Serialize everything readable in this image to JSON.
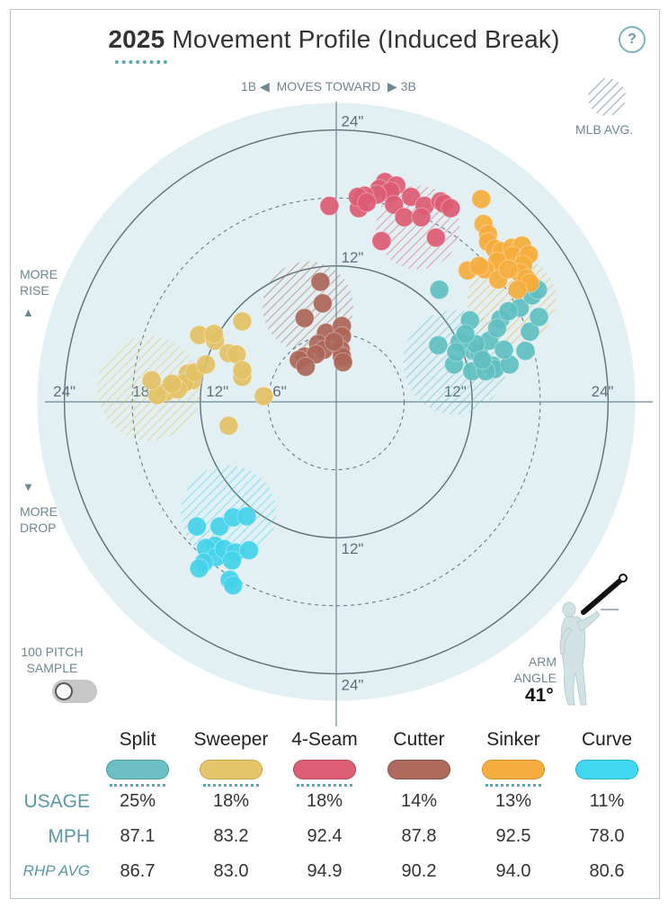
{
  "title": {
    "year": "2025",
    "rest": "Movement Profile (Induced Break)"
  },
  "help_icon": "?",
  "direction": {
    "left": "1B",
    "middle": "MOVES TOWARD",
    "right": "3B"
  },
  "legend": {
    "mlb_avg": "MLB AVG."
  },
  "vertical_labels": {
    "rise_1": "MORE",
    "rise_2": "RISE",
    "drop_1": "MORE",
    "drop_2": "DROP"
  },
  "sample_toggle": {
    "line1": "100 PITCH",
    "line2": "SAMPLE",
    "on": false
  },
  "arm_angle": {
    "line1": "ARM",
    "line2": "ANGLE",
    "value": "41°"
  },
  "row_labels": {
    "usage": "USAGE",
    "mph": "MPH",
    "rhp": "RHP AVG"
  },
  "colors": {
    "background_disc": "#e2eff3",
    "ring": "#5d7179",
    "grid": "#6e8a94"
  },
  "chart_data": {
    "type": "scatter",
    "units": "inches",
    "axis_range": [
      -27,
      27
    ],
    "rings": [
      6,
      12,
      18,
      24
    ],
    "ring_labels": [
      {
        "text": "24\"",
        "x": 0,
        "y": 24
      },
      {
        "text": "12\"",
        "x": 0,
        "y": 12
      },
      {
        "text": "12\"",
        "x": 0,
        "y": -12
      },
      {
        "text": "24\"",
        "x": 0,
        "y": -24
      },
      {
        "text": "24\"",
        "x": -24,
        "y": 0
      },
      {
        "text": "18\"",
        "x": -17,
        "y": 0
      },
      {
        "text": "12\"",
        "x": -10.5,
        "y": 0
      },
      {
        "text": "6\"",
        "x": -5,
        "y": 0
      },
      {
        "text": "12\"",
        "x": 10.5,
        "y": 0
      },
      {
        "text": "24\"",
        "x": 23.5,
        "y": 0
      }
    ],
    "mlb_avg": [
      {
        "pitch": "Split",
        "x": 10.5,
        "y": 3.5,
        "r": 4.6
      },
      {
        "pitch": "Sweeper",
        "x": -16.5,
        "y": 1.2,
        "r": 4.6
      },
      {
        "pitch": "4-Seam",
        "x": 7.2,
        "y": 15.4,
        "r": 3.7
      },
      {
        "pitch": "Cutter",
        "x": -2.5,
        "y": 8.4,
        "r": 4.0
      },
      {
        "pitch": "Sinker",
        "x": 15.5,
        "y": 9.0,
        "r": 3.9
      },
      {
        "pitch": "Curve",
        "x": -9.5,
        "y": -9.8,
        "r": 4.2
      }
    ],
    "series": [
      {
        "name": "Split",
        "color": "#5fbfc0",
        "points": [
          [
            9.1,
            9.9
          ],
          [
            11.8,
            7.2
          ],
          [
            12.1,
            4.5
          ],
          [
            12.6,
            4.3
          ],
          [
            13.5,
            5.4
          ],
          [
            12.3,
            5.1
          ],
          [
            9.0,
            5.0
          ],
          [
            10.9,
            5.3
          ],
          [
            12.0,
            2.7
          ],
          [
            13.8,
            3.2
          ],
          [
            14.0,
            2.9
          ],
          [
            14.5,
            7.3
          ],
          [
            15.3,
            3.3
          ],
          [
            16.7,
            4.5
          ],
          [
            17.1,
            6.2
          ],
          [
            17.9,
            7.5
          ],
          [
            16.2,
            8.3
          ],
          [
            15.2,
            8.0
          ],
          [
            17.3,
            9.4
          ],
          [
            17.8,
            9.9
          ],
          [
            13.2,
            2.7
          ],
          [
            12.9,
            3.7
          ],
          [
            14.8,
            4.6
          ],
          [
            14.2,
            6.5
          ],
          [
            10.4,
            3.3
          ],
          [
            11.4,
            6.0
          ],
          [
            10.6,
            4.4
          ]
        ]
      },
      {
        "name": "Sweeper",
        "color": "#e3c064",
        "points": [
          [
            -8.3,
            7.1
          ],
          [
            -12.1,
            5.9
          ],
          [
            -10.7,
            5.4
          ],
          [
            -10.8,
            6.0
          ],
          [
            -9.5,
            4.3
          ],
          [
            -8.8,
            4.2
          ],
          [
            -13.1,
            2.5
          ],
          [
            -12.7,
            1.9
          ],
          [
            -13.4,
            1.7
          ],
          [
            -15.0,
            0.9
          ],
          [
            -15.8,
            0.6
          ],
          [
            -16.3,
            1.9
          ],
          [
            -12.5,
            2.6
          ],
          [
            -8.3,
            2.2
          ],
          [
            -8.3,
            2.8
          ],
          [
            -6.4,
            0.5
          ],
          [
            -9.5,
            -2.1
          ],
          [
            -14.0,
            1.1
          ],
          [
            -14.5,
            1.6
          ],
          [
            -11.5,
            3.3
          ]
        ]
      },
      {
        "name": "4-Seam",
        "color": "#dc5c74",
        "points": [
          [
            4.3,
            19.4
          ],
          [
            5.3,
            19.1
          ],
          [
            3.8,
            18.8
          ],
          [
            4.7,
            18.4
          ],
          [
            4.8,
            18.6
          ],
          [
            6.6,
            18.1
          ],
          [
            7.8,
            17.3
          ],
          [
            9.2,
            17.7
          ],
          [
            5.1,
            17.4
          ],
          [
            6.0,
            16.3
          ],
          [
            7.5,
            16.3
          ],
          [
            9.5,
            17.5
          ],
          [
            10.1,
            17.1
          ],
          [
            8.8,
            14.5
          ],
          [
            4.0,
            14.2
          ],
          [
            3.6,
            18.3
          ],
          [
            2.2,
            17.8
          ],
          [
            -0.6,
            17.3
          ],
          [
            2.5,
            18.2
          ],
          [
            2.0,
            17.1
          ],
          [
            1.9,
            18.1
          ],
          [
            2.7,
            17.6
          ]
        ]
      },
      {
        "name": "Cutter",
        "color": "#ab6658",
        "points": [
          [
            -1.4,
            10.6
          ],
          [
            -1.2,
            8.7
          ],
          [
            -2.8,
            7.4
          ],
          [
            -0.9,
            6.1
          ],
          [
            0.5,
            6.7
          ],
          [
            0.5,
            5.8
          ],
          [
            -1.6,
            5.1
          ],
          [
            -1.1,
            4.6
          ],
          [
            -2.8,
            4.0
          ],
          [
            -1.8,
            4.2
          ],
          [
            -3.3,
            3.7
          ],
          [
            -2.7,
            3.1
          ],
          [
            0.4,
            4.6
          ],
          [
            0.5,
            4.0
          ],
          [
            0.6,
            3.5
          ],
          [
            -0.2,
            5.3
          ]
        ]
      },
      {
        "name": "Sinker",
        "color": "#f5ac3c",
        "points": [
          [
            12.8,
            17.9
          ],
          [
            13.0,
            15.7
          ],
          [
            13.4,
            14.8
          ],
          [
            13.4,
            14.1
          ],
          [
            14.0,
            13.5
          ],
          [
            14.5,
            12.6
          ],
          [
            14.6,
            13.3
          ],
          [
            15.5,
            13.6
          ],
          [
            16.4,
            13.8
          ],
          [
            15.6,
            12.9
          ],
          [
            16.7,
            12.7
          ],
          [
            17.0,
            13.0
          ],
          [
            16.5,
            12.1
          ],
          [
            16.2,
            11.4
          ],
          [
            16.8,
            10.9
          ],
          [
            17.1,
            10.5
          ],
          [
            16.0,
            9.9
          ],
          [
            14.2,
            12.4
          ],
          [
            13.1,
            11.7
          ],
          [
            11.6,
            11.6
          ],
          [
            12.6,
            12.0
          ],
          [
            14.3,
            10.8
          ],
          [
            15.2,
            11.7
          ]
        ]
      },
      {
        "name": "Curve",
        "color": "#43d3ea",
        "points": [
          [
            -12.3,
            -11.0
          ],
          [
            -10.3,
            -11.0
          ],
          [
            -9.1,
            -10.2
          ],
          [
            -7.9,
            -10.1
          ],
          [
            -10.7,
            -12.7
          ],
          [
            -11.5,
            -12.9
          ],
          [
            -10.6,
            -13.7
          ],
          [
            -9.9,
            -13.0
          ],
          [
            -8.9,
            -13.3
          ],
          [
            -7.7,
            -13.1
          ],
          [
            -9.2,
            -14.0
          ],
          [
            -11.7,
            -14.2
          ],
          [
            -12.1,
            -14.7
          ],
          [
            -9.4,
            -15.7
          ],
          [
            -9.1,
            -16.2
          ]
        ]
      }
    ]
  },
  "pitches": [
    {
      "name": "Split",
      "usage": "25%",
      "mph": "87.1",
      "rhp_avg": "86.7",
      "color": "#6cbfc3",
      "border": "#4aa0a4",
      "dotted": true
    },
    {
      "name": "Sweeper",
      "usage": "18%",
      "mph": "83.2",
      "rhp_avg": "83.0",
      "color": "#e6c66c",
      "border": "#c9a64a",
      "dotted": true
    },
    {
      "name": "4-Seam",
      "usage": "18%",
      "mph": "92.4",
      "rhp_avg": "94.9",
      "color": "#de5f75",
      "border": "#b5475a",
      "dotted": true
    },
    {
      "name": "Cutter",
      "usage": "14%",
      "mph": "87.8",
      "rhp_avg": "90.2",
      "color": "#ad6a5d",
      "border": "#8a4e43",
      "dotted": false
    },
    {
      "name": "Sinker",
      "usage": "13%",
      "mph": "92.5",
      "rhp_avg": "94.0",
      "color": "#f6ae40",
      "border": "#d58e23",
      "dotted": true
    },
    {
      "name": "Curve",
      "usage": "11%",
      "mph": "78.0",
      "rhp_avg": "80.6",
      "color": "#43d6ef",
      "border": "#1fb3cc",
      "dotted": false
    }
  ]
}
